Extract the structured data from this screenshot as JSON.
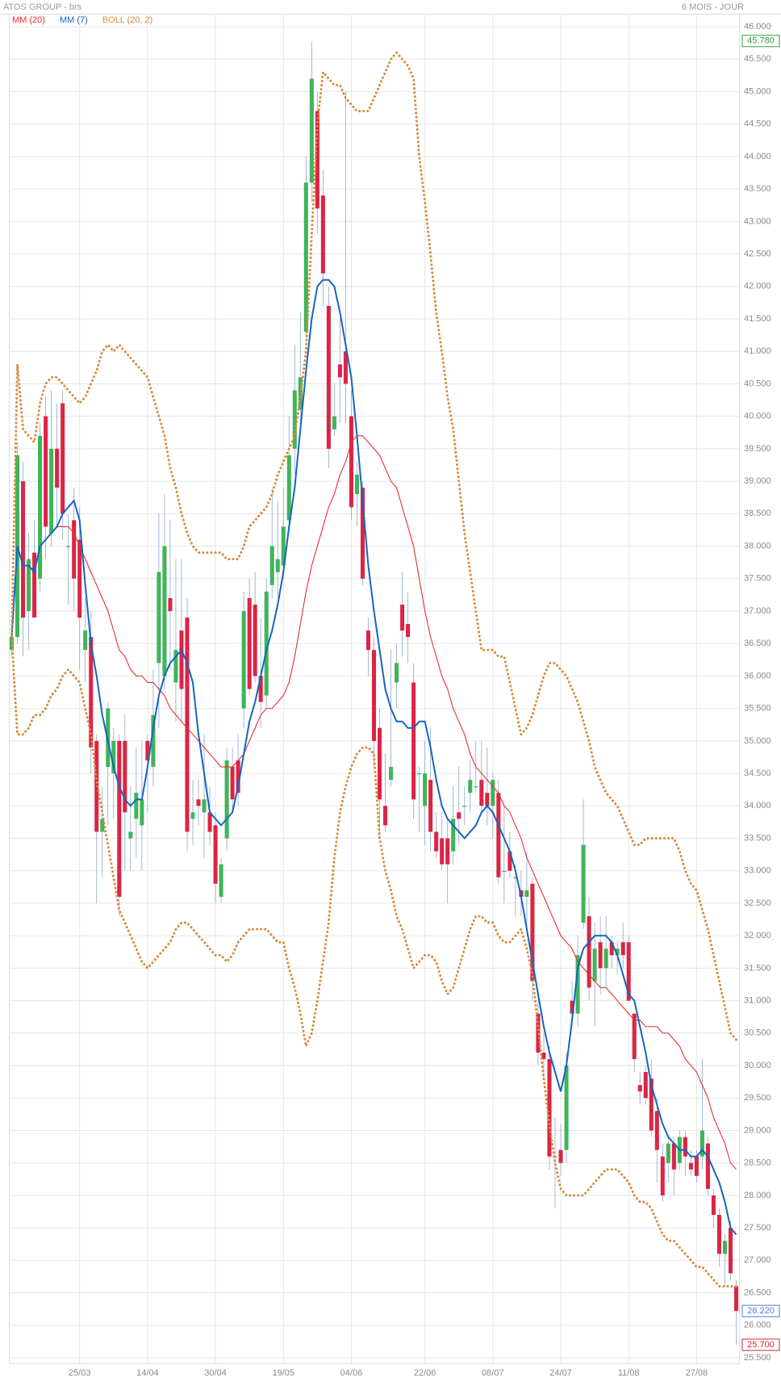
{
  "header": {
    "title": "ATOS GROUP - brs",
    "period": "6 MOIS - JOUR"
  },
  "chart_data": {
    "type": "candlestick",
    "categories": [
      null,
      null,
      null,
      null,
      null,
      null,
      null,
      null,
      null,
      null,
      null,
      null,
      "25/03",
      null,
      null,
      null,
      null,
      null,
      null,
      null,
      null,
      null,
      null,
      null,
      "14/04",
      null,
      null,
      null,
      null,
      null,
      null,
      null,
      null,
      null,
      null,
      null,
      "30/04",
      null,
      null,
      null,
      null,
      null,
      null,
      null,
      null,
      null,
      null,
      null,
      "19/05",
      null,
      null,
      null,
      null,
      null,
      null,
      null,
      null,
      null,
      null,
      null,
      "04/06",
      null,
      null,
      null,
      null,
      null,
      null,
      null,
      null,
      null,
      null,
      null,
      null,
      "22/06",
      null,
      null,
      null,
      null,
      null,
      null,
      null,
      null,
      null,
      null,
      null,
      "08/07",
      null,
      null,
      null,
      null,
      null,
      null,
      null,
      null,
      null,
      null,
      null,
      "24/07",
      null,
      null,
      null,
      null,
      null,
      null,
      null,
      null,
      null,
      null,
      null,
      "11/08",
      null,
      null,
      null,
      null,
      null,
      null,
      null,
      null,
      null,
      null,
      null,
      "27/08",
      null,
      null,
      null,
      null,
      null,
      null,
      null
    ],
    "open": [
      36.4,
      36.6,
      39.0,
      37.0,
      37.9,
      37.5,
      40.0,
      38.2,
      39.5,
      40.2,
      38.0,
      38.4,
      38.1,
      36.4,
      36.6,
      35.0,
      33.6,
      34.6,
      34.5,
      35.0,
      35.0,
      33.5,
      33.8,
      33.7,
      35.0,
      34.6,
      36.2,
      36.0,
      37.2,
      35.9,
      36.7,
      36.9,
      33.8,
      34.1,
      33.9,
      33.9,
      33.7,
      32.6,
      33.5,
      34.6,
      34.7,
      35.5,
      37.2,
      37.1,
      36.0,
      35.7,
      37.4,
      37.6,
      37.7,
      38.4,
      39.5,
      40.1,
      41.3,
      43.6,
      44.7,
      43.4,
      41.7,
      39.8,
      40.8,
      41.0,
      40.0,
      38.8,
      38.9,
      36.7,
      36.4,
      35.2,
      34.0,
      34.4,
      35.9,
      37.1,
      36.8,
      35.9,
      34.5,
      34.0,
      34.4,
      33.6,
      33.5,
      33.5,
      33.3,
      33.9,
      34.0,
      34.2,
      34.3,
      34.4,
      34.2,
      34.0,
      34.2,
      33.0,
      33.3,
      32.9,
      32.7,
      32.6,
      32.8,
      30.8,
      30.2,
      30.1,
      28.6,
      28.7,
      28.7,
      31.0,
      30.8,
      32.2,
      32.3,
      31.3,
      31.9,
      31.5,
      31.9,
      31.7,
      31.9,
      31.9,
      30.8,
      29.7,
      29.9,
      29.8,
      29.3,
      28.6,
      28.5,
      28.8,
      28.5,
      28.9,
      28.5,
      28.6,
      28.6,
      28.8,
      28.0,
      27.7,
      27.1,
      27.5,
      26.6
    ],
    "high": [
      36.7,
      39.6,
      39.3,
      38.2,
      38.4,
      39.9,
      40.3,
      40.4,
      40.2,
      40.4,
      38.5,
      38.9,
      38.6,
      37.2,
      37.0,
      35.1,
      34.3,
      35.6,
      35.2,
      35.1,
      35.4,
      34.3,
      34.9,
      35.0,
      35.1,
      36.1,
      38.5,
      38.8,
      38.4,
      37.8,
      37.8,
      37.2,
      34.4,
      34.4,
      35.1,
      34.3,
      33.9,
      33.2,
      34.9,
      34.9,
      35.1,
      37.3,
      37.5,
      37.6,
      36.9,
      37.5,
      38.9,
      38.7,
      38.9,
      40.0,
      41.1,
      41.6,
      44.0,
      45.78,
      45.0,
      43.8,
      42.0,
      40.5,
      41.5,
      45.0,
      40.4,
      39.3,
      39.0,
      36.9,
      36.6,
      35.5,
      34.8,
      36.4,
      36.5,
      37.6,
      37.3,
      36.2,
      34.6,
      35.0,
      35.2,
      33.9,
      33.9,
      33.8,
      34.3,
      34.6,
      34.3,
      34.7,
      35.0,
      35.0,
      34.9,
      34.5,
      34.4,
      34.0,
      33.6,
      33.1,
      33.0,
      33.3,
      32.9,
      31.1,
      30.5,
      30.3,
      29.2,
      29.1,
      30.2,
      31.3,
      32.0,
      34.1,
      32.6,
      32.2,
      32.3,
      32.3,
      32.0,
      31.9,
      32.2,
      32.0,
      30.8,
      29.9,
      30.0,
      30.1,
      29.5,
      28.8,
      28.9,
      28.9,
      29.0,
      29.0,
      28.7,
      28.7,
      30.1,
      28.9,
      28.1,
      27.8,
      27.4,
      27.6,
      26.7
    ],
    "low": [
      36.3,
      36.5,
      36.3,
      36.4,
      36.9,
      37.3,
      37.8,
      38.0,
      38.3,
      38.1,
      37.1,
      37.0,
      36.1,
      35.9,
      34.5,
      32.5,
      32.9,
      33.7,
      33.8,
      32.3,
      33.0,
      33.0,
      33.2,
      33.0,
      33.9,
      34.3,
      35.2,
      35.8,
      36.1,
      35.3,
      35.3,
      33.3,
      33.4,
      33.7,
      33.2,
      33.4,
      32.5,
      32.5,
      33.3,
      33.9,
      34.0,
      35.2,
      35.7,
      35.9,
      35.2,
      35.5,
      37.2,
      37.2,
      37.5,
      38.2,
      39.1,
      39.9,
      41.2,
      43.3,
      42.8,
      41.7,
      39.2,
      39.7,
      39.9,
      39.9,
      38.4,
      38.3,
      37.4,
      36.0,
      34.6,
      33.5,
      33.6,
      34.3,
      35.5,
      36.3,
      36.2,
      33.8,
      33.6,
      33.4,
      33.3,
      33.2,
      33.0,
      32.5,
      33.1,
      33.4,
      33.7,
      33.9,
      34.2,
      33.9,
      33.7,
      33.5,
      32.8,
      32.5,
      32.9,
      32.3,
      32.3,
      32.1,
      31.0,
      30.0,
      29.8,
      28.4,
      27.8,
      28.3,
      28.5,
      30.6,
      30.6,
      32.1,
      31.0,
      30.6,
      31.1,
      31.2,
      31.5,
      31.4,
      31.5,
      31.0,
      29.9,
      29.4,
      29.4,
      28.9,
      28.2,
      27.9,
      28.2,
      28.0,
      28.4,
      28.3,
      28.3,
      28.2,
      28.4,
      28.0,
      27.5,
      26.9,
      26.6,
      26.7,
      25.7
    ],
    "close": [
      36.6,
      39.4,
      36.9,
      37.8,
      36.9,
      39.7,
      38.3,
      39.5,
      38.9,
      38.5,
      38.0,
      37.5,
      36.9,
      36.7,
      34.9,
      33.6,
      33.8,
      35.5,
      35.0,
      32.6,
      33.9,
      33.6,
      34.2,
      34.1,
      34.7,
      35.4,
      37.6,
      38.0,
      37.0,
      36.4,
      35.8,
      33.6,
      33.9,
      34.0,
      34.1,
      33.6,
      32.8,
      33.1,
      34.7,
      34.1,
      34.2,
      37.0,
      35.8,
      36.0,
      35.6,
      37.3,
      38.0,
      37.8,
      38.3,
      39.4,
      40.4,
      40.6,
      43.6,
      45.2,
      43.2,
      42.2,
      39.5,
      40.0,
      40.6,
      40.5,
      38.6,
      39.1,
      37.5,
      36.4,
      35.0,
      34.1,
      33.7,
      34.6,
      36.2,
      36.7,
      36.6,
      34.1,
      34.5,
      34.5,
      33.6,
      33.3,
      33.1,
      33.1,
      33.8,
      33.8,
      34.0,
      34.4,
      34.3,
      34.0,
      34.0,
      34.4,
      32.9,
      33.0,
      33.0,
      32.9,
      32.6,
      32.7,
      31.3,
      30.2,
      30.1,
      28.6,
      28.6,
      28.5,
      30.0,
      30.8,
      31.7,
      33.4,
      31.2,
      31.8,
      31.5,
      31.8,
      31.7,
      31.8,
      31.7,
      31.0,
      30.1,
      29.6,
      29.5,
      29.0,
      28.7,
      28.0,
      28.8,
      28.4,
      28.9,
      28.6,
      28.4,
      28.3,
      29.0,
      28.1,
      27.7,
      27.1,
      27.3,
      26.8,
      26.22
    ],
    "up_color": "#3fb45a",
    "down_color": "#dc2445",
    "series": [
      {
        "name": "MM (20)",
        "color": "#e8302f",
        "style": "solid",
        "values": [
          null,
          null,
          null,
          null,
          null,
          38.0,
          38.1,
          38.2,
          38.3,
          38.3,
          38.3,
          38.2,
          38.0,
          37.8,
          37.6,
          37.4,
          37.2,
          37.0,
          36.7,
          36.4,
          36.3,
          36.1,
          36.0,
          36.0,
          35.9,
          35.9,
          35.8,
          35.7,
          35.5,
          35.4,
          35.3,
          35.2,
          35.1,
          35.0,
          34.9,
          34.8,
          34.7,
          34.6,
          34.6,
          34.6,
          34.7,
          34.8,
          35.0,
          35.2,
          35.4,
          35.5,
          35.5,
          35.6,
          35.7,
          35.9,
          36.3,
          36.8,
          37.3,
          37.7,
          38.0,
          38.3,
          38.6,
          38.8,
          39.1,
          39.3,
          39.6,
          39.7,
          39.7,
          39.6,
          39.5,
          39.4,
          39.2,
          39.0,
          38.9,
          38.6,
          38.3,
          38.0,
          37.5,
          37.0,
          36.6,
          36.3,
          36.0,
          35.8,
          35.5,
          35.3,
          35.1,
          34.8,
          34.6,
          34.5,
          34.4,
          34.3,
          34.2,
          34.0,
          33.9,
          33.7,
          33.5,
          33.2,
          33.0,
          32.8,
          32.6,
          32.4,
          32.2,
          32.0,
          31.9,
          31.8,
          31.6,
          31.5,
          31.4,
          31.3,
          31.2,
          31.2,
          31.1,
          31.0,
          30.9,
          30.8,
          30.7,
          30.7,
          30.6,
          30.6,
          30.6,
          30.5,
          30.5,
          30.4,
          30.3,
          30.1,
          30.0,
          29.9,
          29.7,
          29.5,
          29.2,
          29.0,
          28.8,
          28.5,
          28.4
        ]
      },
      {
        "name": "MM (7)",
        "color": "#1565c0",
        "style": "solid",
        "values": [
          36.6,
          38.0,
          37.7,
          37.7,
          37.6,
          38.0,
          38.1,
          38.2,
          38.3,
          38.5,
          38.6,
          38.7,
          38.4,
          37.4,
          36.5,
          36.0,
          35.4,
          35.0,
          34.6,
          34.3,
          34.1,
          34.0,
          34.1,
          34.1,
          34.6,
          35.2,
          35.7,
          36.0,
          36.2,
          36.3,
          36.4,
          36.2,
          35.9,
          35.1,
          34.5,
          33.9,
          33.8,
          33.7,
          33.8,
          33.9,
          34.3,
          34.8,
          35.3,
          35.6,
          36.0,
          36.4,
          36.7,
          37.1,
          37.6,
          38.3,
          38.9,
          39.8,
          40.7,
          41.5,
          42.0,
          42.1,
          42.1,
          42.0,
          41.6,
          41.1,
          40.6,
          39.7,
          38.7,
          37.7,
          37.0,
          36.4,
          35.8,
          35.5,
          35.3,
          35.3,
          35.2,
          35.2,
          35.3,
          35.3,
          34.9,
          34.4,
          34.0,
          33.8,
          33.7,
          33.6,
          33.5,
          33.6,
          33.7,
          33.9,
          34.0,
          33.9,
          33.7,
          33.5,
          33.3,
          33.0,
          32.6,
          32.1,
          31.6,
          31.1,
          30.6,
          30.2,
          29.9,
          29.6,
          30.0,
          30.7,
          31.5,
          31.8,
          31.9,
          32.0,
          32.0,
          32.0,
          31.9,
          31.7,
          31.4,
          31.1,
          31.0,
          30.6,
          30.2,
          29.7,
          29.4,
          29.1,
          28.9,
          28.8,
          28.7,
          28.7,
          28.6,
          28.6,
          28.7,
          28.6,
          28.4,
          28.2,
          27.9,
          27.5,
          27.4
        ]
      },
      {
        "name": "BOLL (20, 2)",
        "color": "#d98a3a",
        "style": "dotted",
        "upper": [
          36.6,
          40.8,
          39.8,
          39.7,
          39.6,
          40.2,
          40.5,
          40.6,
          40.6,
          40.5,
          40.4,
          40.3,
          40.2,
          40.3,
          40.5,
          40.7,
          41.0,
          41.1,
          41.0,
          41.1,
          41.0,
          40.9,
          40.8,
          40.7,
          40.6,
          40.3,
          40.0,
          39.7,
          39.2,
          38.9,
          38.5,
          38.2,
          38.0,
          37.9,
          37.9,
          37.9,
          37.9,
          37.9,
          37.8,
          37.8,
          37.8,
          38.0,
          38.3,
          38.4,
          38.5,
          38.6,
          38.8,
          39.1,
          39.3,
          39.5,
          39.7,
          40.3,
          41.0,
          42.8,
          44.5,
          45.3,
          45.2,
          45.1,
          45.1,
          44.9,
          44.8,
          44.7,
          44.7,
          44.7,
          44.9,
          45.1,
          45.3,
          45.5,
          45.6,
          45.5,
          45.4,
          45.2,
          44.0,
          43.3,
          42.5,
          41.6,
          41.0,
          40.3,
          39.8,
          39.0,
          38.2,
          37.6,
          37.0,
          36.4,
          36.4,
          36.4,
          36.3,
          36.3,
          35.9,
          35.5,
          35.1,
          35.2,
          35.4,
          35.7,
          36.0,
          36.2,
          36.2,
          36.1,
          36.0,
          35.8,
          35.6,
          35.3,
          35.0,
          34.6,
          34.4,
          34.2,
          34.1,
          34.0,
          33.8,
          33.6,
          33.4,
          33.4,
          33.5,
          33.5,
          33.5,
          33.5,
          33.5,
          33.5,
          33.3,
          33.0,
          32.8,
          32.7,
          32.4,
          32.1,
          31.7,
          31.3,
          30.9,
          30.5,
          30.4
        ],
        "lower": [
          36.6,
          35.1,
          35.1,
          35.2,
          35.4,
          35.4,
          35.5,
          35.7,
          35.8,
          36.0,
          36.1,
          36.0,
          35.9,
          35.5,
          35.1,
          34.4,
          33.9,
          33.4,
          32.9,
          32.4,
          32.2,
          32.0,
          31.8,
          31.6,
          31.5,
          31.6,
          31.7,
          31.8,
          31.9,
          32.1,
          32.2,
          32.2,
          32.1,
          32.0,
          31.9,
          31.8,
          31.7,
          31.7,
          31.6,
          31.7,
          31.9,
          32.0,
          32.1,
          32.1,
          32.1,
          32.1,
          32.0,
          31.9,
          31.9,
          31.5,
          31.2,
          30.8,
          30.3,
          30.5,
          31.0,
          31.6,
          32.2,
          33.2,
          33.9,
          34.3,
          34.6,
          34.8,
          34.9,
          34.9,
          34.8,
          33.5,
          33.0,
          32.7,
          32.3,
          32.1,
          31.8,
          31.5,
          31.6,
          31.7,
          31.7,
          31.6,
          31.3,
          31.1,
          31.2,
          31.5,
          31.8,
          32.1,
          32.3,
          32.3,
          32.2,
          32.2,
          32.0,
          31.9,
          31.9,
          32.0,
          32.1,
          31.8,
          31.4,
          30.6,
          29.8,
          29.1,
          28.5,
          28.1,
          28.0,
          28.0,
          28.0,
          28.0,
          28.1,
          28.2,
          28.3,
          28.4,
          28.4,
          28.4,
          28.3,
          28.2,
          28.0,
          27.9,
          27.9,
          27.8,
          27.6,
          27.4,
          27.3,
          27.3,
          27.2,
          27.1,
          27.0,
          26.9,
          26.9,
          26.8,
          26.7,
          26.6,
          26.6,
          26.6,
          26.6
        ]
      }
    ],
    "ylim": [
      25.4,
      46.2
    ],
    "yticks": [
      {
        "value": 25.5,
        "label": "25.500"
      },
      {
        "value": 26,
        "label": "26.000"
      },
      {
        "value": 26.5,
        "label": "26.500"
      },
      {
        "value": 27,
        "label": "27.000"
      },
      {
        "value": 27.5,
        "label": "27.500"
      },
      {
        "value": 28,
        "label": "28.000"
      },
      {
        "value": 28.5,
        "label": "28.500"
      },
      {
        "value": 29,
        "label": "29.000"
      },
      {
        "value": 29.5,
        "label": "29.500"
      },
      {
        "value": 30,
        "label": "30.000"
      },
      {
        "value": 30.5,
        "label": "30.500"
      },
      {
        "value": 31,
        "label": "31.000"
      },
      {
        "value": 31.5,
        "label": "31.500"
      },
      {
        "value": 32,
        "label": "32.000"
      },
      {
        "value": 32.5,
        "label": "32.500"
      },
      {
        "value": 33,
        "label": "33.000"
      },
      {
        "value": 33.5,
        "label": "33.500"
      },
      {
        "value": 34,
        "label": "34.000"
      },
      {
        "value": 34.5,
        "label": "34.500"
      },
      {
        "value": 35,
        "label": "35.000"
      },
      {
        "value": 35.5,
        "label": "35.500"
      },
      {
        "value": 36,
        "label": "36.000"
      },
      {
        "value": 36.5,
        "label": "36.500"
      },
      {
        "value": 37,
        "label": "37.000"
      },
      {
        "value": 37.5,
        "label": "37.500"
      },
      {
        "value": 38,
        "label": "38.000"
      },
      {
        "value": 38.5,
        "label": "38.500"
      },
      {
        "value": 39,
        "label": "39.000"
      },
      {
        "value": 39.5,
        "label": "39.500"
      },
      {
        "value": 40,
        "label": "40.000"
      },
      {
        "value": 40.5,
        "label": "40.500"
      },
      {
        "value": 41,
        "label": "41.000"
      },
      {
        "value": 41.5,
        "label": "41.500"
      },
      {
        "value": 42,
        "label": "42.000"
      },
      {
        "value": 42.5,
        "label": "42.500"
      },
      {
        "value": 43,
        "label": "43.000"
      },
      {
        "value": 43.5,
        "label": "43.500"
      },
      {
        "value": 44,
        "label": "44.000"
      },
      {
        "value": 44.5,
        "label": "44.500"
      },
      {
        "value": 45,
        "label": "45.000"
      },
      {
        "value": 45.5,
        "label": "45.500"
      },
      {
        "value": 46,
        "label": "46.000"
      }
    ],
    "grid": true,
    "price_markers": [
      {
        "value": 45.78,
        "label": "45.780",
        "color": "#2e9e3e"
      },
      {
        "value": 26.22,
        "label": "26.220",
        "color": "#4a7fe0"
      },
      {
        "value": 25.7,
        "label": "25.700",
        "color": "#d0283c"
      }
    ]
  }
}
